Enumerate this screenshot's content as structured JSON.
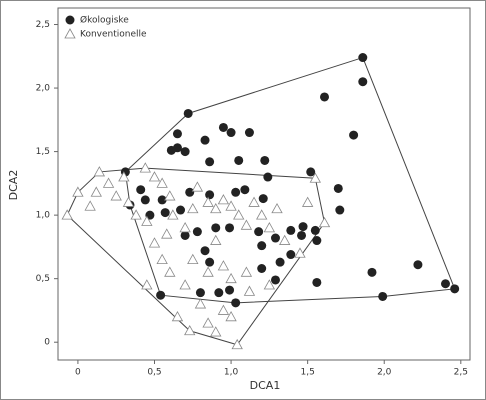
{
  "chart_data": {
    "type": "scatter",
    "xlabel": "DCA1",
    "ylabel": "DCA2",
    "xlim": [
      -0.13,
      2.56
    ],
    "ylim": [
      -0.14,
      2.63
    ],
    "xticks": [
      0,
      {
        "value": 0.5,
        "label": "0,5"
      },
      {
        "value": 1.0,
        "label": "1,0"
      },
      {
        "value": 1.5,
        "label": "1,5"
      },
      {
        "value": 2.0,
        "label": "2,0"
      },
      {
        "value": 2.5,
        "label": "2,5"
      }
    ],
    "yticks": [
      0,
      {
        "value": 0.5,
        "label": "0,5"
      },
      {
        "value": 1.0,
        "label": "1,0"
      },
      {
        "value": 1.5,
        "label": "1,5"
      },
      {
        "value": 2.0,
        "label": "2,0"
      },
      {
        "value": 2.5,
        "label": "2,5"
      }
    ],
    "hulls": true,
    "legend": "upper left",
    "series": [
      {
        "name": "Økologiske",
        "color": "#222222",
        "marker": "circle",
        "x": [
          1.86,
          1.86,
          1.61,
          1.8,
          0.72,
          0.65,
          0.95,
          1.0,
          1.12,
          0.83,
          0.65,
          0.61,
          0.7,
          0.86,
          1.05,
          1.22,
          1.24,
          1.52,
          1.7,
          0.73,
          0.86,
          1.03,
          1.09,
          1.21,
          0.41,
          0.44,
          0.34,
          0.47,
          0.55,
          0.57,
          0.67,
          1.71,
          0.7,
          0.78,
          0.9,
          0.99,
          1.18,
          1.29,
          1.39,
          1.46,
          1.55,
          1.56,
          1.47,
          0.83,
          1.2,
          0.86,
          1.32,
          1.2,
          1.39,
          1.29,
          1.56,
          1.92,
          2.22,
          2.4,
          1.99,
          0.99,
          1.03,
          0.8,
          0.92,
          0.54,
          0.31,
          2.46
        ],
        "values": [
          2.24,
          2.05,
          1.93,
          1.63,
          1.8,
          1.64,
          1.69,
          1.65,
          1.65,
          1.59,
          1.53,
          1.51,
          1.5,
          1.42,
          1.43,
          1.43,
          1.3,
          1.34,
          1.21,
          1.18,
          1.16,
          1.18,
          1.2,
          1.13,
          1.2,
          1.12,
          1.08,
          1.0,
          1.12,
          1.02,
          1.04,
          1.04,
          0.84,
          0.87,
          0.9,
          0.9,
          0.87,
          0.82,
          0.88,
          0.84,
          0.88,
          0.8,
          0.91,
          0.72,
          0.76,
          0.63,
          0.63,
          0.58,
          0.69,
          0.49,
          0.47,
          0.55,
          0.61,
          0.46,
          0.36,
          0.41,
          0.31,
          0.39,
          0.39,
          0.37,
          1.34,
          0.42
        ]
      },
      {
        "name": "Konventionelle",
        "color": "#888888",
        "marker": "triangle",
        "x": [
          -0.07,
          0.14,
          0.44,
          1.55,
          1.61,
          1.04,
          0.73,
          0.0,
          0.08,
          0.12,
          0.2,
          0.25,
          0.3,
          0.33,
          0.38,
          0.45,
          0.5,
          0.55,
          0.6,
          0.62,
          0.5,
          0.55,
          0.6,
          0.58,
          0.7,
          0.75,
          0.78,
          0.85,
          0.9,
          0.95,
          1.0,
          1.05,
          1.1,
          1.15,
          1.2,
          1.25,
          1.3,
          1.35,
          1.45,
          1.5,
          0.75,
          0.85,
          0.9,
          0.95,
          1.0,
          1.1,
          0.8,
          0.85,
          0.95,
          1.0,
          0.7,
          1.12,
          1.25,
          0.45,
          0.65,
          0.9
        ],
        "values": [
          1.0,
          1.34,
          1.37,
          1.29,
          0.94,
          -0.02,
          0.09,
          1.18,
          1.07,
          1.18,
          1.25,
          1.15,
          1.3,
          1.1,
          1.0,
          0.95,
          1.3,
          1.25,
          1.15,
          1.0,
          0.78,
          0.65,
          0.55,
          0.85,
          0.9,
          1.05,
          1.22,
          1.1,
          1.05,
          1.12,
          1.07,
          1.0,
          0.92,
          1.1,
          1.0,
          0.9,
          1.05,
          0.8,
          0.7,
          1.1,
          0.65,
          0.55,
          0.8,
          0.6,
          0.5,
          0.55,
          0.3,
          0.15,
          0.25,
          0.2,
          0.45,
          0.4,
          0.45,
          0.45,
          0.2,
          0.08
        ]
      }
    ]
  }
}
